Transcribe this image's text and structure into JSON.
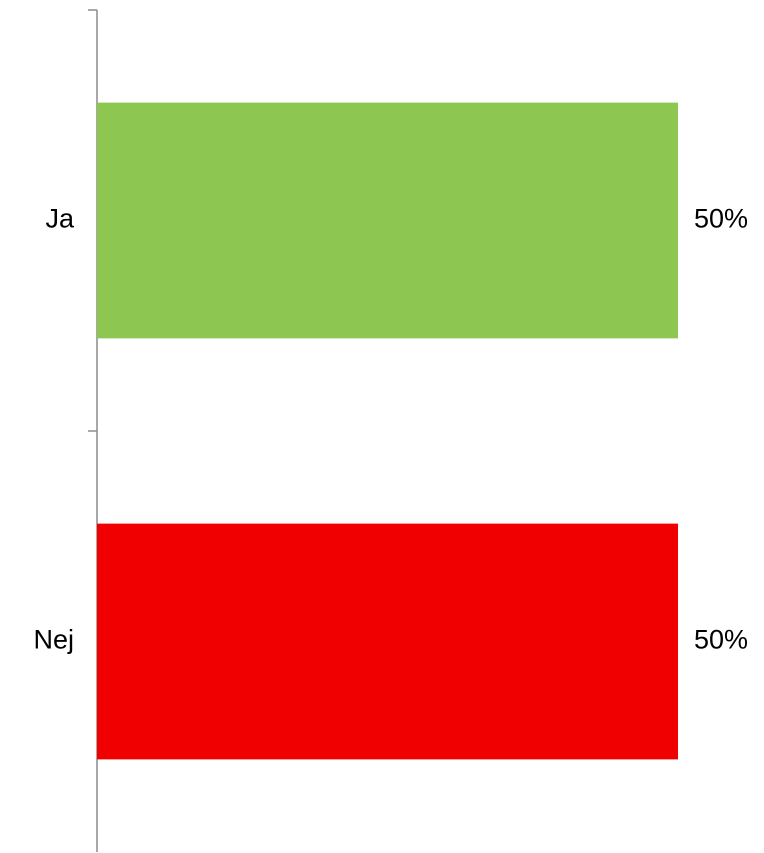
{
  "chart_data": {
    "type": "bar",
    "orientation": "horizontal",
    "categories": [
      "Ja",
      "Nej"
    ],
    "values": [
      50,
      50
    ],
    "value_labels": [
      "50%",
      "50%"
    ],
    "bar_colors": [
      "#8dc752",
      "#f00000"
    ],
    "xlim": [
      0,
      50
    ],
    "title": "",
    "xlabel": "",
    "ylabel": "",
    "grid": false,
    "legend": "none"
  }
}
